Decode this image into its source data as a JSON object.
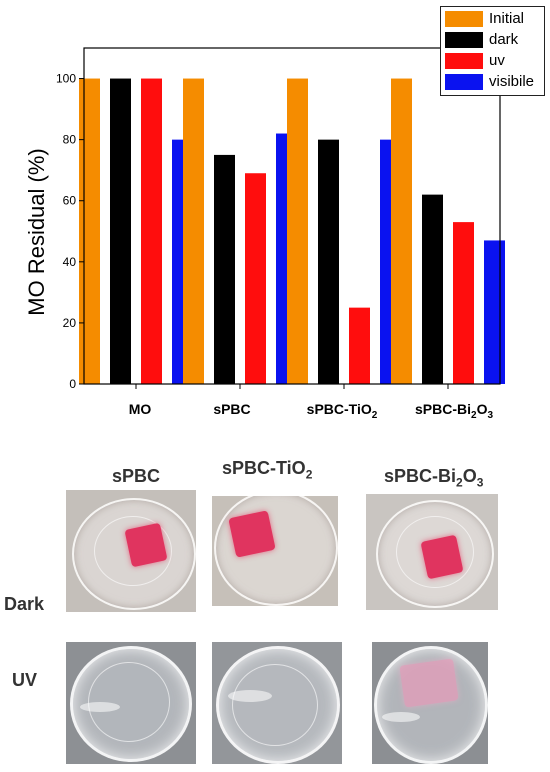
{
  "chart_data": {
    "type": "bar",
    "title": "",
    "ylabel": "MO Residual (%)",
    "xlabel": "",
    "ylim": [
      0,
      110
    ],
    "yticks": [
      0,
      20,
      40,
      60,
      80,
      100
    ],
    "categories": [
      {
        "main": "MO",
        "sub1": "",
        "mid": "",
        "sub2": "",
        "tail": ""
      },
      {
        "main": "sPBC",
        "sub1": "",
        "mid": "",
        "sub2": "",
        "tail": ""
      },
      {
        "main": "sPBC-TiO",
        "sub1": "2",
        "mid": "",
        "sub2": "",
        "tail": ""
      },
      {
        "main": "sPBC-Bi",
        "sub1": "2",
        "mid": "O",
        "sub2": "3",
        "tail": ""
      }
    ],
    "series": [
      {
        "name": "Initial",
        "color": "#f58c00",
        "values": [
          100,
          100,
          100,
          100
        ]
      },
      {
        "name": "dark",
        "color": "#000000",
        "values": [
          100,
          75,
          80,
          62
        ]
      },
      {
        "name": "uv",
        "color": "#ff0d0d",
        "values": [
          100,
          69,
          25,
          53
        ]
      },
      {
        "name": "visibile",
        "color": "#0a12f0",
        "values": [
          80,
          82,
          80,
          47
        ]
      }
    ],
    "grid": false,
    "legend_position": "top-right"
  },
  "photos": {
    "columns": [
      {
        "main": "sPBC",
        "sub1": "",
        "mid": "",
        "sub2": ""
      },
      {
        "main": "sPBC-TiO",
        "sub1": "2",
        "mid": "",
        "sub2": ""
      },
      {
        "main": "sPBC-Bi",
        "sub1": "2",
        "mid": "O",
        "sub2": "3"
      }
    ],
    "rows": [
      "Dark",
      "UV"
    ]
  }
}
